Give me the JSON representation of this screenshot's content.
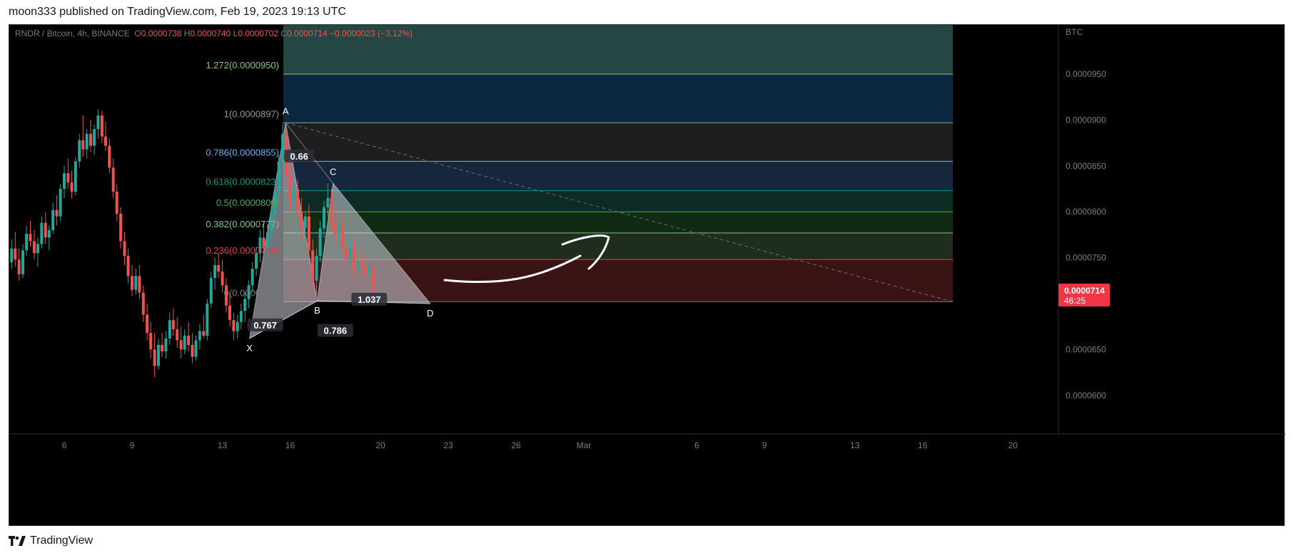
{
  "header": {
    "published": "moon333 published on TradingView.com, Feb 19, 2023 19:13 UTC"
  },
  "footer": {
    "brand": "TradingView"
  },
  "chart_data": {
    "type": "candlestick",
    "symbol": "RNDR / Bitcoin, 4h, BINANCE",
    "ohlc": {
      "o_label": "O",
      "o": "0.0000738",
      "h_label": "H",
      "h": "0.0000740",
      "l_label": "L",
      "l": "0.0000702",
      "c_label": "C",
      "c": "0.0000714",
      "change": "−0.0000023 (−3.12%)"
    },
    "currency": "BTC",
    "last_price": "0.0000714",
    "countdown": "46:25",
    "y_ticks": [
      {
        "label": "0.0000950",
        "value": 9.5e-05
      },
      {
        "label": "0.0000900",
        "value": 9e-05
      },
      {
        "label": "0.0000850",
        "value": 8.5e-05
      },
      {
        "label": "0.0000800",
        "value": 8e-05
      },
      {
        "label": "0.0000750",
        "value": 7.5e-05
      },
      {
        "label": "0.0000650",
        "value": 6.5e-05
      },
      {
        "label": "0.0000600",
        "value": 6e-05
      }
    ],
    "x_ticks": [
      {
        "label": "6",
        "day": 6
      },
      {
        "label": "9",
        "day": 9
      },
      {
        "label": "13",
        "day": 13
      },
      {
        "label": "16",
        "day": 16
      },
      {
        "label": "20",
        "day": 20
      },
      {
        "label": "23",
        "day": 23
      },
      {
        "label": "26",
        "day": 26
      },
      {
        "label": "Mar",
        "day": 29
      },
      {
        "label": "6",
        "day": 34
      },
      {
        "label": "9",
        "day": 37
      },
      {
        "label": "13",
        "day": 41
      },
      {
        "label": "16",
        "day": 44
      },
      {
        "label": "20",
        "day": 48
      }
    ],
    "fib_levels": [
      {
        "ratio": 1.272,
        "label": "1.272(0.0000950)",
        "price": 9.5e-05,
        "color": "#81c784"
      },
      {
        "ratio": 1,
        "label": "1(0.0000897)",
        "price": 8.97e-05,
        "color": "#9598a1"
      },
      {
        "ratio": 0.786,
        "label": "0.786(0.0000855)",
        "price": 8.55e-05,
        "color": "#64b5f6"
      },
      {
        "ratio": 0.618,
        "label": "0.618(0.0000823)",
        "price": 8.23e-05,
        "color": "#089981"
      },
      {
        "ratio": 0.5,
        "label": "0.5(0.0000800)",
        "price": 8e-05,
        "color": "#4caf50"
      },
      {
        "ratio": 0.382,
        "label": "0.382(0.0000777)",
        "price": 7.77e-05,
        "color": "#81c784"
      },
      {
        "ratio": 0.236,
        "label": "0.236(0.0000748)",
        "price": 7.48e-05,
        "color": "#f23645"
      },
      {
        "ratio": 0,
        "label": "0(0.0000702)",
        "price": 7.02e-05,
        "color": "#787b86"
      }
    ],
    "pattern": {
      "points": [
        {
          "label": "X",
          "day": 14.2,
          "price": 6.62e-05
        },
        {
          "label": "A",
          "day": 15.8,
          "price": 8.97e-05
        },
        {
          "label": "B",
          "day": 17.2,
          "price": 7.03e-05
        },
        {
          "label": "C",
          "day": 17.9,
          "price": 8.31e-05
        },
        {
          "label": "D",
          "day": 22.2,
          "price": 7e-05
        }
      ],
      "ratios": [
        {
          "label": "0.767",
          "day": 14.9,
          "price": 6.76e-05
        },
        {
          "label": "0.66",
          "day": 16.4,
          "price": 8.6e-05
        },
        {
          "label": "0.786",
          "day": 18.0,
          "price": 6.7e-05
        },
        {
          "label": "1.037",
          "day": 19.5,
          "price": 7.04e-05
        }
      ]
    },
    "candles": [
      [
        2.0,
        7.1e-05,
        7.38e-05,
        7e-05,
        7.05e-05
      ],
      [
        2.17,
        7.05e-05,
        7.2e-05,
        6.95e-05,
        7.12e-05
      ],
      [
        2.33,
        7.12e-05,
        7.35e-05,
        7.08e-05,
        7.28e-05
      ],
      [
        2.5,
        7.28e-05,
        7.4e-05,
        7.12e-05,
        7.18e-05
      ],
      [
        2.67,
        7.18e-05,
        7.3e-05,
        7.05e-05,
        7.12e-05
      ],
      [
        2.83,
        7.12e-05,
        7.45e-05,
        7.1e-05,
        7.4e-05
      ],
      [
        3.0,
        7.4e-05,
        7.52e-05,
        7.25e-05,
        7.3e-05
      ],
      [
        3.17,
        7.3e-05,
        7.4e-05,
        7.12e-05,
        7.18e-05
      ],
      [
        3.33,
        7.18e-05,
        7.25e-05,
        7.05e-05,
        7.15e-05
      ],
      [
        3.5,
        7.15e-05,
        7.5e-05,
        7.12e-05,
        7.45e-05
      ],
      [
        3.67,
        7.45e-05,
        7.7e-05,
        7.38e-05,
        7.6e-05
      ],
      [
        3.83,
        7.6e-05,
        7.78e-05,
        7.4e-05,
        7.48e-05
      ],
      [
        4.0,
        7.48e-05,
        7.6e-05,
        7.25e-05,
        7.32e-05
      ],
      [
        4.17,
        7.32e-05,
        7.65e-05,
        7.28e-05,
        7.58e-05
      ],
      [
        4.33,
        7.58e-05,
        7.85e-05,
        7.52e-05,
        7.76e-05
      ],
      [
        4.5,
        7.76e-05,
        7.9e-05,
        7.62e-05,
        7.68e-05
      ],
      [
        4.67,
        7.68e-05,
        7.8e-05,
        7.48e-05,
        7.55e-05
      ],
      [
        4.83,
        7.55e-05,
        7.72e-05,
        7.4e-05,
        7.65e-05
      ],
      [
        5.0,
        7.65e-05,
        7.95e-05,
        7.6e-05,
        7.88e-05
      ],
      [
        5.17,
        7.88e-05,
        8e-05,
        7.65e-05,
        7.72e-05
      ],
      [
        5.33,
        7.72e-05,
        7.85e-05,
        7.58e-05,
        7.8e-05
      ],
      [
        5.5,
        7.8e-05,
        8.1e-05,
        7.76e-05,
        8.02e-05
      ],
      [
        5.67,
        8.02e-05,
        8.18e-05,
        7.85e-05,
        7.95e-05
      ],
      [
        5.83,
        7.95e-05,
        8.3e-05,
        7.9e-05,
        8.25e-05
      ],
      [
        6.0,
        8.25e-05,
        8.5e-05,
        8.15e-05,
        8.42e-05
      ],
      [
        6.17,
        8.42e-05,
        8.58e-05,
        8.25e-05,
        8.32e-05
      ],
      [
        6.33,
        8.32e-05,
        8.45e-05,
        8.15e-05,
        8.22e-05
      ],
      [
        6.5,
        8.22e-05,
        8.6e-05,
        8.18e-05,
        8.55e-05
      ],
      [
        6.67,
        8.55e-05,
        8.85e-05,
        8.48e-05,
        8.78e-05
      ],
      [
        6.83,
        8.78e-05,
        9.05e-05,
        8.6e-05,
        8.68e-05
      ],
      [
        7.0,
        8.68e-05,
        8.9e-05,
        8.58e-05,
        8.85e-05
      ],
      [
        7.17,
        8.85e-05,
        9e-05,
        8.65e-05,
        8.72e-05
      ],
      [
        7.33,
        8.72e-05,
        8.95e-05,
        8.62e-05,
        8.9e-05
      ],
      [
        7.5,
        8.9e-05,
        9.12e-05,
        8.8e-05,
        9.05e-05
      ],
      [
        7.67,
        9.05e-05,
        9.1e-05,
        8.75e-05,
        8.82e-05
      ],
      [
        7.83,
        8.82e-05,
        8.98e-05,
        8.66e-05,
        8.72e-05
      ],
      [
        8.0,
        8.72e-05,
        8.8e-05,
        8.42e-05,
        8.48e-05
      ],
      [
        8.17,
        8.48e-05,
        8.58e-05,
        8.15e-05,
        8.22e-05
      ],
      [
        8.33,
        8.22e-05,
        8.3e-05,
        7.9e-05,
        7.98e-05
      ],
      [
        8.5,
        7.98e-05,
        8.05e-05,
        7.6e-05,
        7.68e-05
      ],
      [
        8.67,
        7.68e-05,
        7.78e-05,
        7.42e-05,
        7.52e-05
      ],
      [
        8.83,
        7.52e-05,
        7.6e-05,
        7.22e-05,
        7.3e-05
      ],
      [
        9.0,
        7.3e-05,
        7.42e-05,
        7.08e-05,
        7.15e-05
      ],
      [
        9.17,
        7.15e-05,
        7.38e-05,
        7.1e-05,
        7.3e-05
      ],
      [
        9.33,
        7.3e-05,
        7.42e-05,
        7.05e-05,
        7.12e-05
      ],
      [
        9.5,
        7.12e-05,
        7.2e-05,
        6.8e-05,
        6.88e-05
      ],
      [
        9.67,
        6.88e-05,
        7e-05,
        6.6e-05,
        6.68e-05
      ],
      [
        9.83,
        6.68e-05,
        6.8e-05,
        6.4e-05,
        6.5e-05
      ],
      [
        10.0,
        6.5e-05,
        6.68e-05,
        6.2e-05,
        6.32e-05
      ],
      [
        10.17,
        6.32e-05,
        6.62e-05,
        6.28e-05,
        6.55e-05
      ],
      [
        10.33,
        6.55e-05,
        6.68e-05,
        6.42e-05,
        6.48e-05
      ],
      [
        10.5,
        6.48e-05,
        6.7e-05,
        6.4e-05,
        6.62e-05
      ],
      [
        10.67,
        6.62e-05,
        6.9e-05,
        6.55e-05,
        6.82e-05
      ],
      [
        10.83,
        6.82e-05,
        6.95e-05,
        6.65e-05,
        6.72e-05
      ],
      [
        11.0,
        6.72e-05,
        6.85e-05,
        6.52e-05,
        6.6e-05
      ],
      [
        11.17,
        6.6e-05,
        6.75e-05,
        6.4e-05,
        6.5e-05
      ],
      [
        11.33,
        6.5e-05,
        6.72e-05,
        6.45e-05,
        6.65e-05
      ],
      [
        11.5,
        6.65e-05,
        6.8e-05,
        6.48e-05,
        6.55e-05
      ],
      [
        11.67,
        6.55e-05,
        6.68e-05,
        6.35e-05,
        6.42e-05
      ],
      [
        11.83,
        6.42e-05,
        6.65e-05,
        6.38e-05,
        6.6e-05
      ],
      [
        12.0,
        6.6e-05,
        6.78e-05,
        6.5e-05,
        6.7e-05
      ],
      [
        12.17,
        6.7e-05,
        6.88e-05,
        6.62e-05,
        6.65e-05
      ],
      [
        12.33,
        6.65e-05,
        7.05e-05,
        6.6e-05,
        7e-05
      ],
      [
        12.5,
        7e-05,
        7.35e-05,
        6.95e-05,
        7.28e-05
      ],
      [
        12.67,
        7.28e-05,
        7.5e-05,
        7.15e-05,
        7.42e-05
      ],
      [
        12.83,
        7.42e-05,
        7.55e-05,
        7.28e-05,
        7.35e-05
      ],
      [
        13.0,
        7.35e-05,
        7.48e-05,
        7.12e-05,
        7.2e-05
      ],
      [
        13.17,
        7.2e-05,
        7.28e-05,
        6.9e-05,
        6.98e-05
      ],
      [
        13.33,
        6.98e-05,
        7.12e-05,
        6.75e-05,
        6.82e-05
      ],
      [
        13.5,
        6.82e-05,
        6.9e-05,
        6.6e-05,
        6.7e-05
      ],
      [
        13.67,
        6.7e-05,
        6.88e-05,
        6.62e-05,
        6.8e-05
      ],
      [
        13.83,
        6.8e-05,
        7e-05,
        6.72e-05,
        6.92e-05
      ],
      [
        14.0,
        6.92e-05,
        7.12e-05,
        6.8e-05,
        7.05e-05
      ],
      [
        14.17,
        7.05e-05,
        7.25e-05,
        6.95e-05,
        7.2e-05
      ],
      [
        14.33,
        7.2e-05,
        7.45e-05,
        7.12e-05,
        7.38e-05
      ],
      [
        14.5,
        7.38e-05,
        7.62e-05,
        7.3e-05,
        7.55e-05
      ],
      [
        14.67,
        7.55e-05,
        7.8e-05,
        7.45e-05,
        7.72e-05
      ],
      [
        14.83,
        7.72e-05,
        7.9e-05,
        7.5e-05,
        7.6e-05
      ],
      [
        15.0,
        7.6e-05,
        7.85e-05,
        7.52e-05,
        7.78e-05
      ],
      [
        15.17,
        7.78e-05,
        8.05e-05,
        7.7e-05,
        7.98e-05
      ],
      [
        15.33,
        7.98e-05,
        8.3e-05,
        7.9e-05,
        8.22e-05
      ],
      [
        15.5,
        8.22e-05,
        8.62e-05,
        8.15e-05,
        8.55e-05
      ],
      [
        15.67,
        8.55e-05,
        8.97e-05,
        8.45e-05,
        8.85e-05
      ],
      [
        15.83,
        8.85e-05,
        8.92e-05,
        8.3e-05,
        8.4e-05
      ],
      [
        16.0,
        8.4e-05,
        8.58e-05,
        8e-05,
        8.12e-05
      ],
      [
        16.17,
        8.12e-05,
        8.3e-05,
        7.85e-05,
        8.25e-05
      ],
      [
        16.33,
        8.25e-05,
        8.35e-05,
        7.9e-05,
        8e-05
      ],
      [
        16.5,
        8e-05,
        8.15e-05,
        7.7e-05,
        7.82e-05
      ],
      [
        16.67,
        7.82e-05,
        8e-05,
        7.6e-05,
        7.95e-05
      ],
      [
        16.83,
        7.95e-05,
        8.08e-05,
        7.5e-05,
        7.58e-05
      ],
      [
        17.0,
        7.58e-05,
        7.7e-05,
        7.12e-05,
        7.25e-05
      ],
      [
        17.17,
        7.25e-05,
        7.6e-05,
        7.03e-05,
        7.52e-05
      ],
      [
        17.33,
        7.52e-05,
        7.9e-05,
        7.45e-05,
        7.82e-05
      ],
      [
        17.5,
        7.82e-05,
        8.12e-05,
        7.72e-05,
        8.05e-05
      ],
      [
        17.67,
        8.05e-05,
        8.31e-05,
        7.95e-05,
        8.15e-05
      ],
      [
        17.83,
        8.15e-05,
        8.25e-05,
        7.8e-05,
        7.9e-05
      ],
      [
        18.0,
        7.9e-05,
        8.05e-05,
        7.65e-05,
        7.75e-05
      ],
      [
        18.17,
        7.75e-05,
        7.95e-05,
        7.6e-05,
        7.85e-05
      ],
      [
        18.33,
        7.85e-05,
        7.98e-05,
        7.55e-05,
        7.62e-05
      ],
      [
        18.5,
        7.62e-05,
        7.75e-05,
        7.4e-05,
        7.48e-05
      ],
      [
        18.67,
        7.48e-05,
        7.7e-05,
        7.42e-05,
        7.62e-05
      ],
      [
        18.83,
        7.62e-05,
        7.72e-05,
        7.3e-05,
        7.38e-05
      ],
      [
        19.0,
        7.38e-05,
        7.52e-05,
        7.28e-05,
        7.45e-05
      ],
      [
        19.17,
        7.45e-05,
        7.58e-05,
        7.32e-05,
        7.4e-05
      ],
      [
        19.33,
        7.4e-05,
        7.52e-05,
        7.25e-05,
        7.32e-05
      ],
      [
        19.5,
        7.32e-05,
        7.46e-05,
        7.22e-05,
        7.38e-05
      ],
      [
        19.67,
        7.38e-05,
        7.4e-05,
        7.02e-05,
        7.14e-05
      ]
    ]
  }
}
